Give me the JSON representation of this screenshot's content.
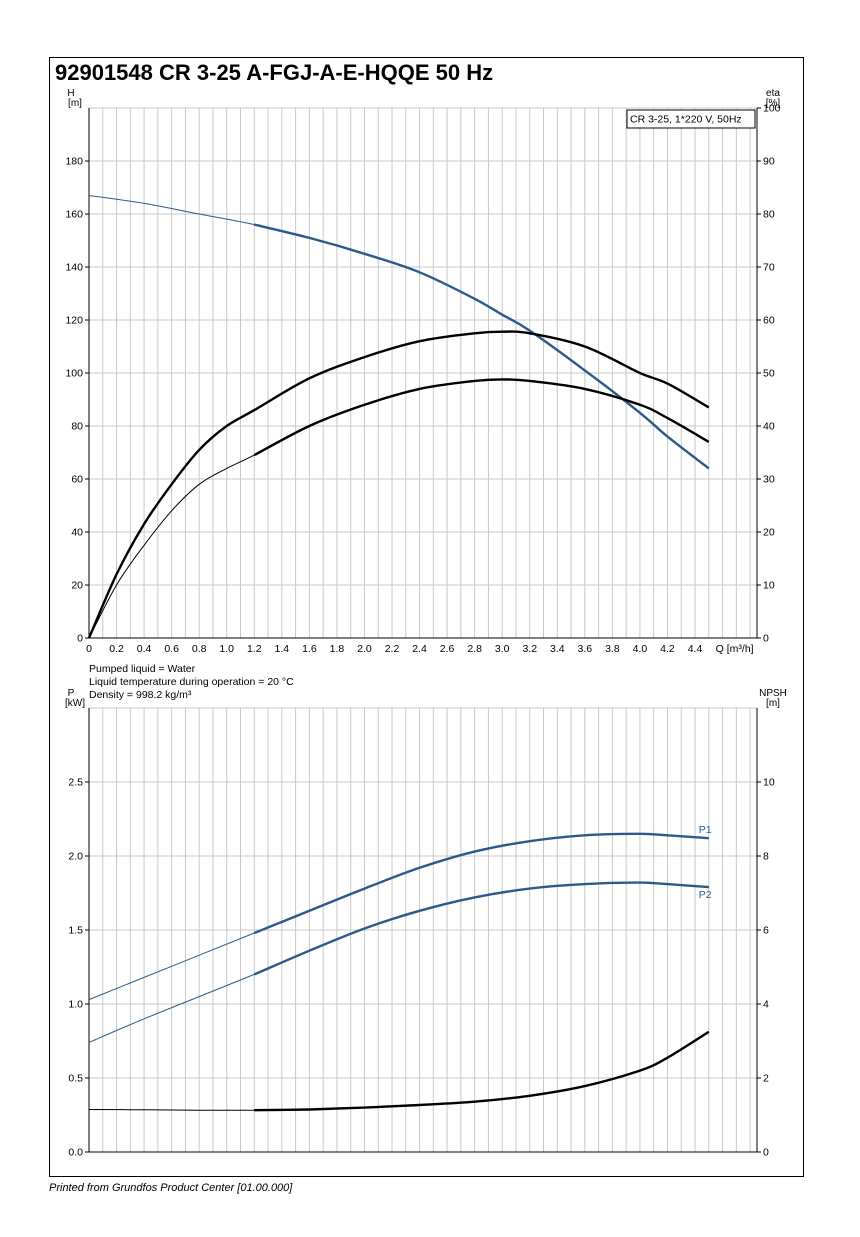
{
  "title": "92901548 CR 3-25 A-FGJ-A-E-HQQE 50 Hz",
  "footer": "Printed from Grundfos Product Center [01.00.000]",
  "colors": {
    "blue": "#2b5a8a",
    "black": "#000000",
    "grid": "#c8c8c8"
  },
  "chart_data": [
    {
      "type": "line",
      "legend_box": "CR 3-25, 1*220 V, 50Hz",
      "xlabel": "Q [m³/h]",
      "xlim": [
        0,
        4.85
      ],
      "xticks": [
        0,
        0.2,
        0.4,
        0.6,
        0.8,
        1.0,
        1.2,
        1.4,
        1.6,
        1.8,
        2.0,
        2.2,
        2.4,
        2.6,
        2.8,
        3.0,
        3.2,
        3.4,
        3.6,
        3.8,
        4.0,
        4.2,
        4.4
      ],
      "xticklabels": [
        "0",
        "0.2",
        "0.4",
        "0.6",
        "0.8",
        "1.0",
        "1.2",
        "1.4",
        "1.6",
        "1.8",
        "2.0",
        "2.2",
        "2.4",
        "2.6",
        "2.8",
        "3.0",
        "3.2",
        "3.4",
        "3.6",
        "3.8",
        "4.0",
        "4.2",
        "4.4"
      ],
      "left_axis": {
        "label_line1": "H",
        "label_line2": "[m]",
        "ylim": [
          0,
          200
        ],
        "ticks": [
          0,
          20,
          40,
          60,
          80,
          100,
          120,
          140,
          160,
          180
        ]
      },
      "right_axis": {
        "label_line1": "eta",
        "label_line2": "[%]",
        "ylim": [
          0,
          100
        ],
        "ticks": [
          0,
          10,
          20,
          30,
          40,
          50,
          60,
          70,
          80,
          90,
          100
        ]
      },
      "notes": [
        "Pumped liquid = Water",
        "Liquid temperature during operation = 20 °C",
        "Density = 998.2 kg/m³"
      ],
      "series": [
        {
          "axis": "left",
          "color": "blue",
          "thin_to": 1.2,
          "x": [
            0,
            0.4,
            0.8,
            1.2,
            1.6,
            2.0,
            2.4,
            2.8,
            3.0,
            3.2,
            3.6,
            4.0,
            4.2,
            4.5
          ],
          "y": [
            167,
            164,
            160,
            156,
            151,
            145,
            138,
            128,
            122,
            116,
            101,
            85,
            76,
            64
          ]
        },
        {
          "axis": "right",
          "color": "black",
          "thin_to": 0,
          "x": [
            0,
            0.2,
            0.4,
            0.6,
            0.8,
            1.0,
            1.2,
            1.6,
            2.0,
            2.4,
            2.8,
            3.0,
            3.2,
            3.6,
            4.0,
            4.2,
            4.5
          ],
          "y": [
            0,
            12,
            21.5,
            29,
            35.5,
            40,
            43,
            49,
            53,
            56,
            57.5,
            57.8,
            57.5,
            55,
            50,
            48,
            43.5
          ]
        },
        {
          "axis": "right",
          "color": "black",
          "thin_to": 1.2,
          "x": [
            0,
            0.2,
            0.4,
            0.6,
            0.8,
            1.0,
            1.2,
            1.6,
            2.0,
            2.4,
            2.8,
            3.0,
            3.2,
            3.6,
            4.0,
            4.2,
            4.5
          ],
          "y": [
            0,
            10,
            17.5,
            24,
            29,
            32,
            34.5,
            40,
            44,
            47,
            48.5,
            48.8,
            48.5,
            47,
            44,
            41.5,
            37
          ]
        }
      ]
    },
    {
      "type": "line",
      "xlim": [
        0,
        4.85
      ],
      "left_axis": {
        "label_line1": "P",
        "label_line2": "[kW]",
        "ylim": [
          0,
          3.0
        ],
        "ticks": [
          0.0,
          0.5,
          1.0,
          1.5,
          2.0,
          2.5
        ],
        "ticklabels": [
          "0.0",
          "0.5",
          "1.0",
          "1.5",
          "2.0",
          "2.5"
        ]
      },
      "right_axis": {
        "label_line1": "NPSH",
        "label_line2": "[m]",
        "ylim": [
          0,
          12
        ],
        "ticks": [
          0,
          2,
          4,
          6,
          8,
          10
        ]
      },
      "series": [
        {
          "name": "P1",
          "axis": "left",
          "color": "blue",
          "thin_to": 1.2,
          "x": [
            0,
            0.4,
            0.8,
            1.2,
            1.6,
            2.0,
            2.4,
            2.8,
            3.2,
            3.6,
            4.0,
            4.2,
            4.5
          ],
          "y": [
            1.03,
            1.18,
            1.33,
            1.48,
            1.63,
            1.78,
            1.92,
            2.03,
            2.1,
            2.14,
            2.15,
            2.14,
            2.12
          ]
        },
        {
          "name": "P2",
          "axis": "left",
          "color": "blue",
          "thin_to": 1.2,
          "x": [
            0,
            0.4,
            0.8,
            1.2,
            1.6,
            2.0,
            2.4,
            2.8,
            3.2,
            3.6,
            4.0,
            4.2,
            4.5
          ],
          "y": [
            0.74,
            0.9,
            1.05,
            1.2,
            1.36,
            1.51,
            1.63,
            1.72,
            1.78,
            1.81,
            1.82,
            1.81,
            1.79
          ]
        },
        {
          "axis": "right",
          "color": "black",
          "thin_to": 1.2,
          "x": [
            0,
            0.4,
            0.8,
            1.2,
            1.6,
            2.0,
            2.4,
            2.8,
            3.2,
            3.6,
            4.0,
            4.2,
            4.5
          ],
          "y": [
            1.15,
            1.14,
            1.13,
            1.13,
            1.15,
            1.2,
            1.27,
            1.36,
            1.52,
            1.78,
            2.2,
            2.55,
            3.25
          ]
        }
      ]
    }
  ]
}
